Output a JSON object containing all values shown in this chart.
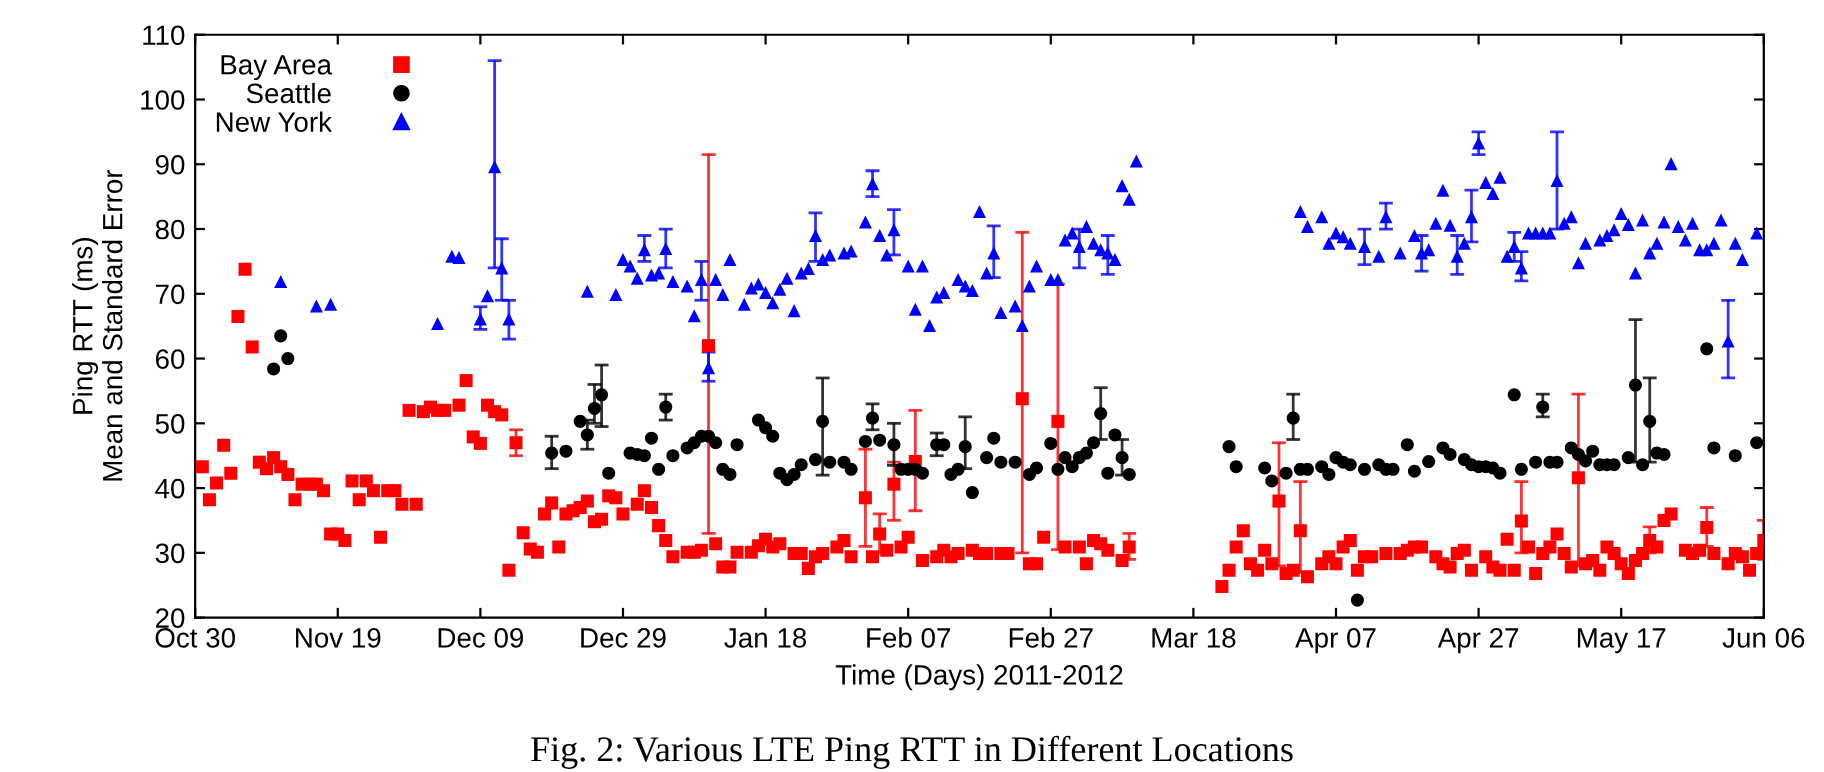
{
  "chart_data": {
    "type": "scatter",
    "xlabel": "Time (Days) 2011-2012",
    "ylabel": "Ping RTT (ms)\nMean and Standard Error",
    "annotations": [
      "Fig. 2: Various LTE Ping RTT in Different Locations"
    ],
    "xlim": [
      "2011-10-30",
      "2012-06-06"
    ],
    "ylim": [
      20,
      110
    ],
    "xticks": [
      {
        "value": "2011-10-30",
        "label": "Oct 30"
      },
      {
        "value": "2011-11-19",
        "label": "Nov 19"
      },
      {
        "value": "2011-12-09",
        "label": "Dec 09"
      },
      {
        "value": "2011-12-29",
        "label": "Dec 29"
      },
      {
        "value": "2012-01-18",
        "label": "Jan 18"
      },
      {
        "value": "2012-02-07",
        "label": "Feb 07"
      },
      {
        "value": "2012-02-27",
        "label": "Feb 27"
      },
      {
        "value": "2012-03-18",
        "label": "Mar 18"
      },
      {
        "value": "2012-04-07",
        "label": "Apr 07"
      },
      {
        "value": "2012-04-27",
        "label": "Apr 27"
      },
      {
        "value": "2012-05-17",
        "label": "May 17"
      },
      {
        "value": "2012-06-06",
        "label": "Jun 06"
      }
    ],
    "yticks": [
      20,
      30,
      40,
      50,
      60,
      70,
      80,
      90,
      100,
      110
    ],
    "grid": false,
    "legend": "top left",
    "series": [
      {
        "name": "Bay Area",
        "color": "#ff0000",
        "marker": "square",
        "x": [
          "2011-10-31",
          "2011-11-01",
          "2011-11-02",
          "2011-11-03",
          "2011-11-04",
          "2011-11-05",
          "2011-11-06",
          "2011-11-07",
          "2011-11-08",
          "2011-11-09",
          "2011-11-10",
          "2011-11-11",
          "2011-11-12",
          "2011-11-13",
          "2011-11-14",
          "2011-11-15",
          "2011-11-16",
          "2011-11-17",
          "2011-11-18",
          "2011-11-19",
          "2011-11-20",
          "2011-11-21",
          "2011-11-22",
          "2011-11-23",
          "2011-11-24",
          "2011-11-25",
          "2011-11-26",
          "2011-11-27",
          "2011-11-28",
          "2011-11-29",
          "2011-11-30",
          "2011-12-01",
          "2011-12-02",
          "2011-12-03",
          "2011-12-04",
          "2011-12-06",
          "2011-12-07",
          "2011-12-08",
          "2011-12-09",
          "2011-12-10",
          "2011-12-11",
          "2011-12-12",
          "2011-12-13",
          "2011-12-14",
          "2011-12-15",
          "2011-12-16",
          "2011-12-17",
          "2011-12-18",
          "2011-12-19",
          "2011-12-20",
          "2011-12-21",
          "2011-12-22",
          "2011-12-23",
          "2011-12-24",
          "2011-12-25",
          "2011-12-26",
          "2011-12-27",
          "2011-12-28",
          "2011-12-29",
          "2011-12-31",
          "2012-01-01",
          "2012-01-02",
          "2012-01-03",
          "2012-01-04",
          "2012-01-05",
          "2012-01-07",
          "2012-01-08",
          "2012-01-09",
          "2012-01-10",
          "2012-01-11",
          "2012-01-12",
          "2012-01-13",
          "2012-01-14",
          "2012-01-16",
          "2012-01-17",
          "2012-01-18",
          "2012-01-19",
          "2012-01-20",
          "2012-01-22",
          "2012-01-23",
          "2012-01-24",
          "2012-01-25",
          "2012-01-26",
          "2012-01-28",
          "2012-01-29",
          "2012-01-30",
          "2012-02-01",
          "2012-02-02",
          "2012-02-03",
          "2012-02-04",
          "2012-02-05",
          "2012-02-06",
          "2012-02-07",
          "2012-02-08",
          "2012-02-09",
          "2012-02-11",
          "2012-02-12",
          "2012-02-13",
          "2012-02-14",
          "2012-02-16",
          "2012-02-17",
          "2012-02-18",
          "2012-02-20",
          "2012-02-21",
          "2012-02-23",
          "2012-02-24",
          "2012-02-25",
          "2012-02-26",
          "2012-02-28",
          "2012-02-29",
          "2012-03-02",
          "2012-03-03",
          "2012-03-04",
          "2012-03-05",
          "2012-03-06",
          "2012-03-08",
          "2012-03-09",
          "2012-03-22",
          "2012-03-23",
          "2012-03-24",
          "2012-03-25",
          "2012-03-26",
          "2012-03-27",
          "2012-03-28",
          "2012-03-29",
          "2012-03-30",
          "2012-03-31",
          "2012-04-01",
          "2012-04-02",
          "2012-04-03",
          "2012-04-05",
          "2012-04-06",
          "2012-04-07",
          "2012-04-08",
          "2012-04-09",
          "2012-04-10",
          "2012-04-11",
          "2012-04-12",
          "2012-04-14",
          "2012-04-16",
          "2012-04-17",
          "2012-04-18",
          "2012-04-19",
          "2012-04-21",
          "2012-04-22",
          "2012-04-23",
          "2012-04-24",
          "2012-04-25",
          "2012-04-26",
          "2012-04-28",
          "2012-04-29",
          "2012-04-30",
          "2012-05-01",
          "2012-05-02",
          "2012-05-03",
          "2012-05-04",
          "2012-05-05",
          "2012-05-06",
          "2012-05-07",
          "2012-05-08",
          "2012-05-09",
          "2012-05-10",
          "2012-05-11",
          "2012-05-12",
          "2012-05-13",
          "2012-05-14",
          "2012-05-15",
          "2012-05-16",
          "2012-05-17",
          "2012-05-18",
          "2012-05-19",
          "2012-05-20",
          "2012-05-21",
          "2012-05-22",
          "2012-05-23",
          "2012-05-24",
          "2012-05-26",
          "2012-05-27",
          "2012-05-28",
          "2012-05-29",
          "2012-05-30",
          "2012-06-01",
          "2012-06-02",
          "2012-06-03",
          "2012-06-04",
          "2012-06-05",
          "2012-06-06"
        ],
        "values": [
          43.3,
          38.2,
          40.8,
          46.6,
          42.3,
          66.5,
          73.8,
          61.8,
          44,
          43,
          44.7,
          43.3,
          42.1,
          38.2,
          40.6,
          40.6,
          40.6,
          39.6,
          32.9,
          32.9,
          31.9,
          41.1,
          38.2,
          41.1,
          39.6,
          32.4,
          39.6,
          39.6,
          37.5,
          52,
          37.5,
          51.8,
          52.5,
          52,
          52,
          52.8,
          56.6,
          47.9,
          46.9,
          52.8,
          51.8,
          51.3,
          27.3,
          47,
          33.1,
          30.6,
          30.1,
          36,
          37.7,
          30.9,
          36,
          36.5,
          37,
          38,
          34.8,
          35.2,
          38.8,
          38.5,
          36,
          37.5,
          39.6,
          37,
          34.2,
          31.9,
          29.4,
          30.1,
          30.1,
          30.4,
          62,
          31.4,
          27.8,
          27.8,
          30.1,
          30.1,
          31.1,
          32.1,
          30.9,
          31.4,
          29.9,
          29.9,
          27.6,
          29.4,
          29.9,
          30.9,
          31.9,
          29.4,
          38.5,
          29.4,
          32.9,
          30.4,
          40.6,
          30.9,
          32.4,
          44.1,
          28.8,
          29.4,
          30.4,
          29.4,
          29.9,
          30.4,
          29.9,
          29.9,
          29.9,
          29.9,
          53.8,
          28.3,
          28.3,
          32.4,
          50.3,
          30.9,
          30.9,
          28.3,
          31.9,
          31.4,
          30.4,
          28.8,
          30.9,
          24.8,
          27.3,
          30.9,
          33.4,
          28.3,
          27.3,
          30.4,
          28.3,
          38,
          26.8,
          27.3,
          33.4,
          26.3,
          28.3,
          29.4,
          28.3,
          30.9,
          31.9,
          27.3,
          29.4,
          29.4,
          29.9,
          29.9,
          30.4,
          30.9,
          30.9,
          29.4,
          28.3,
          27.8,
          29.9,
          30.4,
          27.3,
          29.4,
          27.8,
          27.3,
          32.1,
          27.3,
          34.9,
          30.9,
          26.8,
          29.9,
          30.9,
          32.9,
          29.9,
          27.8,
          41.6,
          28.3,
          28.8,
          27.3,
          30.9,
          29.9,
          28.3,
          26.8,
          28.8,
          29.9,
          31.9,
          30.9,
          35,
          36,
          30.4,
          29.9,
          30.4,
          33.9,
          29.9,
          28.3,
          29.9,
          29.4,
          27.3,
          29.9,
          31.9
        ],
        "errors": [
          null,
          null,
          null,
          null,
          null,
          null,
          null,
          null,
          null,
          null,
          null,
          null,
          null,
          null,
          null,
          null,
          null,
          null,
          null,
          null,
          null,
          null,
          null,
          null,
          null,
          null,
          null,
          null,
          null,
          null,
          null,
          null,
          null,
          null,
          null,
          null,
          null,
          null,
          null,
          null,
          null,
          null,
          null,
          [
            45,
            49
          ],
          null,
          null,
          null,
          null,
          null,
          null,
          null,
          null,
          null,
          null,
          null,
          null,
          null,
          null,
          null,
          null,
          null,
          null,
          null,
          null,
          null,
          null,
          null,
          null,
          [
            33,
            91.5
          ],
          null,
          null,
          null,
          null,
          null,
          null,
          null,
          null,
          null,
          null,
          null,
          null,
          null,
          null,
          null,
          null,
          null,
          [
            31,
            46
          ],
          null,
          [
            30,
            36
          ],
          null,
          [
            35,
            44
          ],
          null,
          null,
          [
            36.5,
            52
          ],
          null,
          null,
          null,
          null,
          null,
          null,
          null,
          null,
          null,
          null,
          [
            30,
            79.5
          ],
          null,
          null,
          null,
          [
            30.5,
            71.5
          ],
          null,
          null,
          null,
          null,
          null,
          null,
          null,
          [
            29,
            33
          ],
          null,
          null,
          null,
          null,
          null,
          null,
          null,
          null,
          [
            28,
            47
          ],
          null,
          null,
          [
            27,
            41
          ],
          null,
          null,
          null,
          null,
          null,
          null,
          null,
          null,
          null,
          null,
          null,
          null,
          null,
          null,
          null,
          null,
          null,
          null,
          null,
          null,
          null,
          null,
          null,
          null,
          null,
          [
            30,
            41
          ],
          null,
          null,
          null,
          null,
          null,
          null,
          null,
          [
            28,
            54.5
          ],
          null,
          null,
          null,
          null,
          null,
          null,
          null,
          null,
          null,
          [
            30,
            34
          ],
          null,
          null,
          null,
          null,
          null,
          null,
          [
            31,
            37
          ],
          null,
          null,
          null,
          null,
          null,
          null,
          [
            29,
            35
          ]
        ]
      },
      {
        "name": "Seattle",
        "color": "#000000",
        "marker": "circle",
        "x": [
          "2011-11-10",
          "2011-11-11",
          "2011-11-12",
          "2011-12-19",
          "2011-12-21",
          "2011-12-23",
          "2011-12-24",
          "2011-12-25",
          "2011-12-26",
          "2011-12-27",
          "2011-12-30",
          "2011-12-31",
          "2012-01-01",
          "2012-01-02",
          "2012-01-03",
          "2012-01-04",
          "2012-01-05",
          "2012-01-07",
          "2012-01-08",
          "2012-01-09",
          "2012-01-10",
          "2012-01-11",
          "2012-01-12",
          "2012-01-13",
          "2012-01-14",
          "2012-01-17",
          "2012-01-18",
          "2012-01-19",
          "2012-01-20",
          "2012-01-21",
          "2012-01-22",
          "2012-01-23",
          "2012-01-25",
          "2012-01-26",
          "2012-01-27",
          "2012-01-29",
          "2012-01-30",
          "2012-02-01",
          "2012-02-02",
          "2012-02-03",
          "2012-02-05",
          "2012-02-06",
          "2012-02-07",
          "2012-02-08",
          "2012-02-09",
          "2012-02-11",
          "2012-02-12",
          "2012-02-13",
          "2012-02-14",
          "2012-02-15",
          "2012-02-16",
          "2012-02-18",
          "2012-02-19",
          "2012-02-20",
          "2012-02-22",
          "2012-02-24",
          "2012-02-25",
          "2012-02-27",
          "2012-02-28",
          "2012-02-29",
          "2012-03-01",
          "2012-03-02",
          "2012-03-03",
          "2012-03-04",
          "2012-03-05",
          "2012-03-06",
          "2012-03-07",
          "2012-03-08",
          "2012-03-09",
          "2012-03-23",
          "2012-03-24",
          "2012-03-28",
          "2012-03-29",
          "2012-03-31",
          "2012-04-01",
          "2012-04-02",
          "2012-04-03",
          "2012-04-05",
          "2012-04-06",
          "2012-04-07",
          "2012-04-08",
          "2012-04-09",
          "2012-04-10",
          "2012-04-11",
          "2012-04-13",
          "2012-04-14",
          "2012-04-15",
          "2012-04-17",
          "2012-04-18",
          "2012-04-20",
          "2012-04-22",
          "2012-04-23",
          "2012-04-25",
          "2012-04-26",
          "2012-04-27",
          "2012-04-28",
          "2012-04-29",
          "2012-04-30",
          "2012-05-02",
          "2012-05-03",
          "2012-05-05",
          "2012-05-06",
          "2012-05-07",
          "2012-05-08",
          "2012-05-10",
          "2012-05-11",
          "2012-05-12",
          "2012-05-13",
          "2012-05-14",
          "2012-05-15",
          "2012-05-16",
          "2012-05-18",
          "2012-05-19",
          "2012-05-20",
          "2012-05-21",
          "2012-05-22",
          "2012-05-23",
          "2012-05-29",
          "2012-05-30",
          "2012-06-02",
          "2012-06-05"
        ],
        "values": [
          58.4,
          63.5,
          60,
          45.4,
          45.7,
          50.3,
          48.2,
          52.3,
          54.4,
          42.3,
          45.4,
          45.2,
          45,
          47.7,
          42.9,
          52.5,
          45,
          46.2,
          47,
          48,
          48,
          47,
          42.9,
          42.1,
          46.7,
          50.5,
          49.3,
          48,
          42.3,
          41.3,
          42.1,
          43.6,
          44.4,
          50.3,
          44,
          44,
          42.9,
          47.2,
          50.8,
          47.4,
          46.7,
          42.9,
          42.9,
          42.9,
          42.3,
          46.7,
          46.7,
          42.1,
          42.9,
          46.4,
          39.3,
          44.7,
          47.7,
          44,
          44,
          42.1,
          43.1,
          46.9,
          42.9,
          44.7,
          43.3,
          44.7,
          45.4,
          47,
          51.5,
          42.3,
          48.2,
          44.7,
          42.1,
          46.4,
          43.3,
          43.1,
          41.1,
          42.3,
          50.8,
          42.9,
          42.9,
          43.3,
          42.1,
          44.7,
          44,
          43.6,
          22.7,
          42.9,
          43.6,
          42.9,
          42.9,
          46.7,
          42.6,
          44.1,
          46.2,
          45.2,
          44.4,
          43.6,
          43.3,
          43.3,
          43.1,
          42.3,
          54.4,
          42.9,
          44,
          52.5,
          44,
          44,
          46.2,
          45.2,
          44.2,
          45.7,
          43.6,
          43.6,
          43.6,
          44.7,
          55.9,
          43.6,
          50.3,
          45.4,
          45.2,
          61.5,
          46.2,
          45,
          47
        ],
        "errors": [
          null,
          null,
          null,
          [
            43,
            48
          ],
          null,
          null,
          [
            46,
            50.5
          ],
          [
            50,
            56
          ],
          [
            49.5,
            59
          ],
          null,
          null,
          null,
          null,
          null,
          null,
          [
            50.5,
            54.5
          ],
          null,
          null,
          null,
          null,
          null,
          null,
          null,
          null,
          null,
          null,
          null,
          null,
          null,
          null,
          null,
          null,
          null,
          [
            42,
            57
          ],
          null,
          null,
          null,
          null,
          [
            49,
            53
          ],
          null,
          [
            43.5,
            50
          ],
          null,
          null,
          null,
          null,
          [
            45,
            48.5
          ],
          null,
          null,
          null,
          [
            43,
            51
          ],
          null,
          null,
          null,
          null,
          null,
          null,
          null,
          null,
          null,
          null,
          null,
          null,
          null,
          null,
          [
            47.5,
            55.5
          ],
          null,
          null,
          [
            42,
            47.5
          ],
          null,
          null,
          null,
          null,
          null,
          null,
          [
            47.5,
            54.5
          ],
          null,
          null,
          null,
          null,
          null,
          null,
          null,
          null,
          null,
          null,
          null,
          null,
          null,
          null,
          null,
          null,
          null,
          null,
          null,
          null,
          null,
          null,
          null,
          null,
          null,
          null,
          [
            51,
            54.5
          ],
          null,
          null,
          null,
          null,
          null,
          null,
          null,
          null,
          null,
          null,
          [
            44,
            66
          ],
          null,
          [
            44,
            57
          ],
          null,
          null,
          null,
          null,
          null,
          null
        ]
      },
      {
        "name": "New York",
        "color": "#0000ff",
        "marker": "triangle",
        "x": [
          "2011-11-11",
          "2011-11-16",
          "2011-11-18",
          "2011-12-03",
          "2011-12-05",
          "2011-12-06",
          "2011-12-09",
          "2011-12-10",
          "2011-12-11",
          "2011-12-12",
          "2011-12-13",
          "2011-12-24",
          "2011-12-28",
          "2011-12-29",
          "2011-12-30",
          "2011-12-31",
          "2012-01-01",
          "2012-01-02",
          "2012-01-03",
          "2012-01-04",
          "2012-01-05",
          "2012-01-07",
          "2012-01-08",
          "2012-01-09",
          "2012-01-10",
          "2012-01-11",
          "2012-01-12",
          "2012-01-13",
          "2012-01-15",
          "2012-01-16",
          "2012-01-17",
          "2012-01-18",
          "2012-01-19",
          "2012-01-20",
          "2012-01-21",
          "2012-01-22",
          "2012-01-23",
          "2012-01-24",
          "2012-01-25",
          "2012-01-26",
          "2012-01-27",
          "2012-01-29",
          "2012-01-30",
          "2012-02-01",
          "2012-02-02",
          "2012-02-03",
          "2012-02-04",
          "2012-02-05",
          "2012-02-07",
          "2012-02-08",
          "2012-02-09",
          "2012-02-10",
          "2012-02-11",
          "2012-02-12",
          "2012-02-14",
          "2012-02-15",
          "2012-02-16",
          "2012-02-17",
          "2012-02-18",
          "2012-02-19",
          "2012-02-20",
          "2012-02-22",
          "2012-02-23",
          "2012-02-24",
          "2012-02-25",
          "2012-02-27",
          "2012-02-28",
          "2012-02-29",
          "2012-03-01",
          "2012-03-02",
          "2012-03-03",
          "2012-03-04",
          "2012-03-05",
          "2012-03-06",
          "2012-03-07",
          "2012-03-08",
          "2012-03-09",
          "2012-03-10",
          "2012-04-02",
          "2012-04-03",
          "2012-04-05",
          "2012-04-06",
          "2012-04-07",
          "2012-04-08",
          "2012-04-09",
          "2012-04-11",
          "2012-04-13",
          "2012-04-14",
          "2012-04-16",
          "2012-04-18",
          "2012-04-19",
          "2012-04-20",
          "2012-04-21",
          "2012-04-22",
          "2012-04-23",
          "2012-04-24",
          "2012-04-25",
          "2012-04-26",
          "2012-04-27",
          "2012-04-28",
          "2012-04-29",
          "2012-04-30",
          "2012-05-01",
          "2012-05-02",
          "2012-05-03",
          "2012-05-04",
          "2012-05-05",
          "2012-05-06",
          "2012-05-07",
          "2012-05-08",
          "2012-05-09",
          "2012-05-10",
          "2012-05-11",
          "2012-05-12",
          "2012-05-14",
          "2012-05-15",
          "2012-05-16",
          "2012-05-17",
          "2012-05-18",
          "2012-05-19",
          "2012-05-20",
          "2012-05-21",
          "2012-05-22",
          "2012-05-23",
          "2012-05-24",
          "2012-05-25",
          "2012-05-26",
          "2012-05-27",
          "2012-05-28",
          "2012-05-29",
          "2012-05-30",
          "2012-05-31",
          "2012-06-01",
          "2012-06-02",
          "2012-06-03",
          "2012-06-05"
        ],
        "values": [
          71.9,
          68.1,
          68.4,
          65.4,
          75.8,
          75.6,
          66.1,
          69.7,
          89.6,
          74,
          66.1,
          70.4,
          69.9,
          75.3,
          74.3,
          72.4,
          76.8,
          72.9,
          73.2,
          77,
          71.9,
          71.2,
          66.6,
          72.2,
          58.6,
          72.2,
          69.9,
          75.3,
          68.4,
          70.9,
          71.5,
          70.2,
          68.6,
          70.7,
          72.4,
          67.4,
          73.2,
          73.9,
          79,
          75.3,
          76,
          76.3,
          76.6,
          81.1,
          87,
          79,
          76,
          79.9,
          74.3,
          67.6,
          74.3,
          65.1,
          69.5,
          70.2,
          72.2,
          71.2,
          70.5,
          82.7,
          73.2,
          76.3,
          67.1,
          68.1,
          65.1,
          71.2,
          74.3,
          72.2,
          72.2,
          78.3,
          79.4,
          77.3,
          80.4,
          77.8,
          76.8,
          76.3,
          75.3,
          86.7,
          84.6,
          90.5,
          82.7,
          80.4,
          81.9,
          77.8,
          79.4,
          78.8,
          77.8,
          77.3,
          75.8,
          81.9,
          76.3,
          79,
          76.3,
          76.8,
          80.9,
          86,
          80.6,
          75.8,
          77.8,
          81.9,
          93.3,
          87.2,
          85.5,
          88,
          75.8,
          77.3,
          74,
          79.4,
          79.4,
          79.4,
          79.4,
          87.5,
          80.9,
          81.9,
          74.8,
          77.8,
          78.3,
          79,
          79.9,
          82.4,
          80.7,
          73.2,
          81.4,
          76.3,
          77.8,
          81.1,
          90.1,
          80.4,
          78.3,
          80.9,
          76.8,
          76.8,
          77.8,
          81.4,
          62.7,
          77.8,
          75.3,
          79.4
        ],
        "errors": [
          null,
          null,
          null,
          null,
          null,
          null,
          [
            64.5,
            68
          ],
          null,
          [
            74,
            106
          ],
          [
            69,
            78.5
          ],
          [
            63,
            69
          ],
          null,
          null,
          null,
          null,
          null,
          [
            75,
            79
          ],
          null,
          null,
          [
            74,
            80
          ],
          null,
          null,
          null,
          [
            69,
            75
          ],
          [
            56.5,
            61
          ],
          null,
          null,
          null,
          null,
          null,
          null,
          null,
          null,
          null,
          null,
          null,
          null,
          null,
          [
            75,
            82.5
          ],
          null,
          null,
          null,
          null,
          null,
          [
            85,
            89
          ],
          null,
          null,
          [
            76,
            83
          ],
          null,
          null,
          null,
          null,
          null,
          null,
          null,
          null,
          null,
          null,
          null,
          [
            72.5,
            80.5
          ],
          null,
          null,
          null,
          null,
          null,
          null,
          null,
          null,
          null,
          [
            74,
            80
          ],
          null,
          null,
          null,
          [
            73,
            79
          ],
          null,
          null,
          null,
          null,
          null,
          null,
          null,
          null,
          null,
          null,
          null,
          [
            74.5,
            80
          ],
          null,
          [
            80,
            84
          ],
          null,
          null,
          [
            73.5,
            79
          ],
          null,
          null,
          null,
          null,
          [
            73,
            79
          ],
          null,
          [
            78,
            86
          ],
          [
            91.5,
            95
          ],
          null,
          null,
          null,
          null,
          [
            75,
            79.5
          ],
          [
            72,
            76.5
          ],
          null,
          null,
          null,
          null,
          [
            80,
            95
          ],
          null,
          null,
          null,
          null,
          null,
          null,
          null,
          null,
          null,
          null,
          null,
          null,
          null,
          null,
          null,
          null,
          null,
          null,
          null,
          null,
          null,
          null,
          [
            57,
            69
          ],
          null,
          null,
          null
        ]
      }
    ]
  }
}
